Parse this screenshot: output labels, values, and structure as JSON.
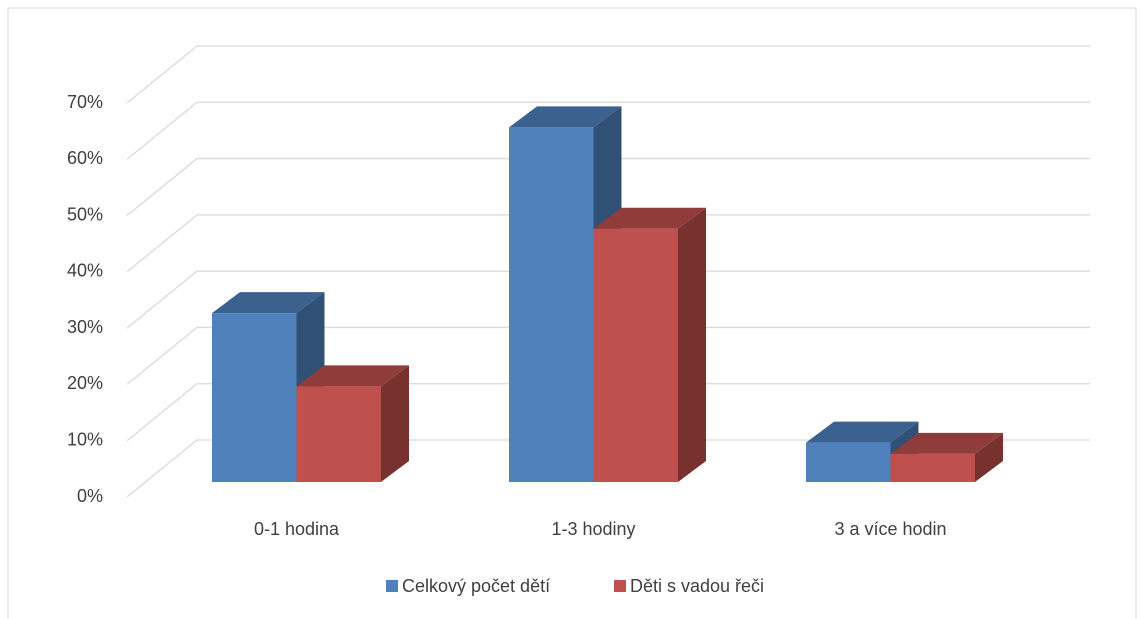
{
  "chart_data": {
    "type": "bar3d",
    "categories": [
      "0-1 hodina",
      "1-3 hodiny",
      "3 a více hodin"
    ],
    "series": [
      {
        "name": "Celkový počet dětí",
        "color": "#4f81bd",
        "values": [
          30,
          63,
          7
        ]
      },
      {
        "name": "Děti s vadou řeči",
        "color": "#c0504d",
        "values": [
          17,
          45,
          5
        ]
      }
    ],
    "ylim": [
      0,
      70
    ],
    "yticks": [
      {
        "value": 0,
        "label": "0%"
      },
      {
        "value": 10,
        "label": "10%"
      },
      {
        "value": 20,
        "label": "20%"
      },
      {
        "value": 30,
        "label": "30%"
      },
      {
        "value": 40,
        "label": "40%"
      },
      {
        "value": 50,
        "label": "50%"
      },
      {
        "value": 60,
        "label": "60%"
      },
      {
        "value": 70,
        "label": "70%"
      }
    ],
    "grid": true,
    "legend": "bottom"
  }
}
